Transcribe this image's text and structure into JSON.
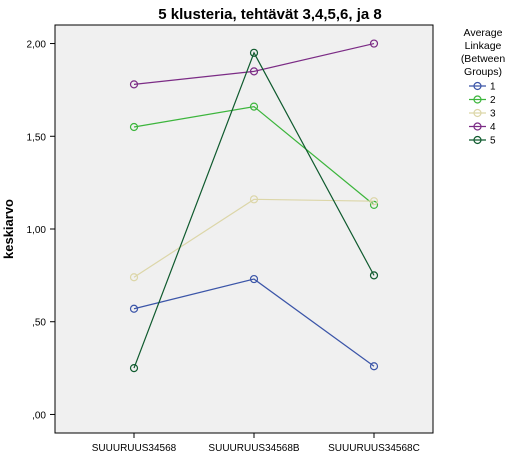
{
  "chart_data": {
    "type": "line",
    "title": "5 klusteria, tehtävät 3,4,5,6, ja 8",
    "xlabel": "",
    "ylabel": "keskiarvo",
    "categories": [
      "SUUURUUS34568",
      "SUUURUUS34568B",
      "SUUURUUS34568C"
    ],
    "y_ticks": [
      0,
      0.5,
      1.0,
      1.5,
      2.0
    ],
    "y_tick_labels": [
      ",00",
      ",50",
      "1,00",
      "1,50",
      "2,00"
    ],
    "ylim": [
      -0.1,
      2.1
    ],
    "grid": false,
    "legend": {
      "title_lines": [
        "Average",
        "Linkage",
        "(Between",
        "Groups)"
      ],
      "placement": "right"
    },
    "series": [
      {
        "name": "1",
        "color": "#3b55a8",
        "values": [
          0.57,
          0.73,
          0.26
        ]
      },
      {
        "name": "2",
        "color": "#3cb53c",
        "values": [
          1.55,
          1.66,
          1.13
        ]
      },
      {
        "name": "3",
        "color": "#dcd6a8",
        "values": [
          0.74,
          1.16,
          1.15
        ]
      },
      {
        "name": "4",
        "color": "#7b2b85",
        "values": [
          1.78,
          1.85,
          2.0
        ]
      },
      {
        "name": "5",
        "color": "#0f5a2e",
        "values": [
          0.25,
          1.95,
          0.75
        ]
      }
    ]
  }
}
